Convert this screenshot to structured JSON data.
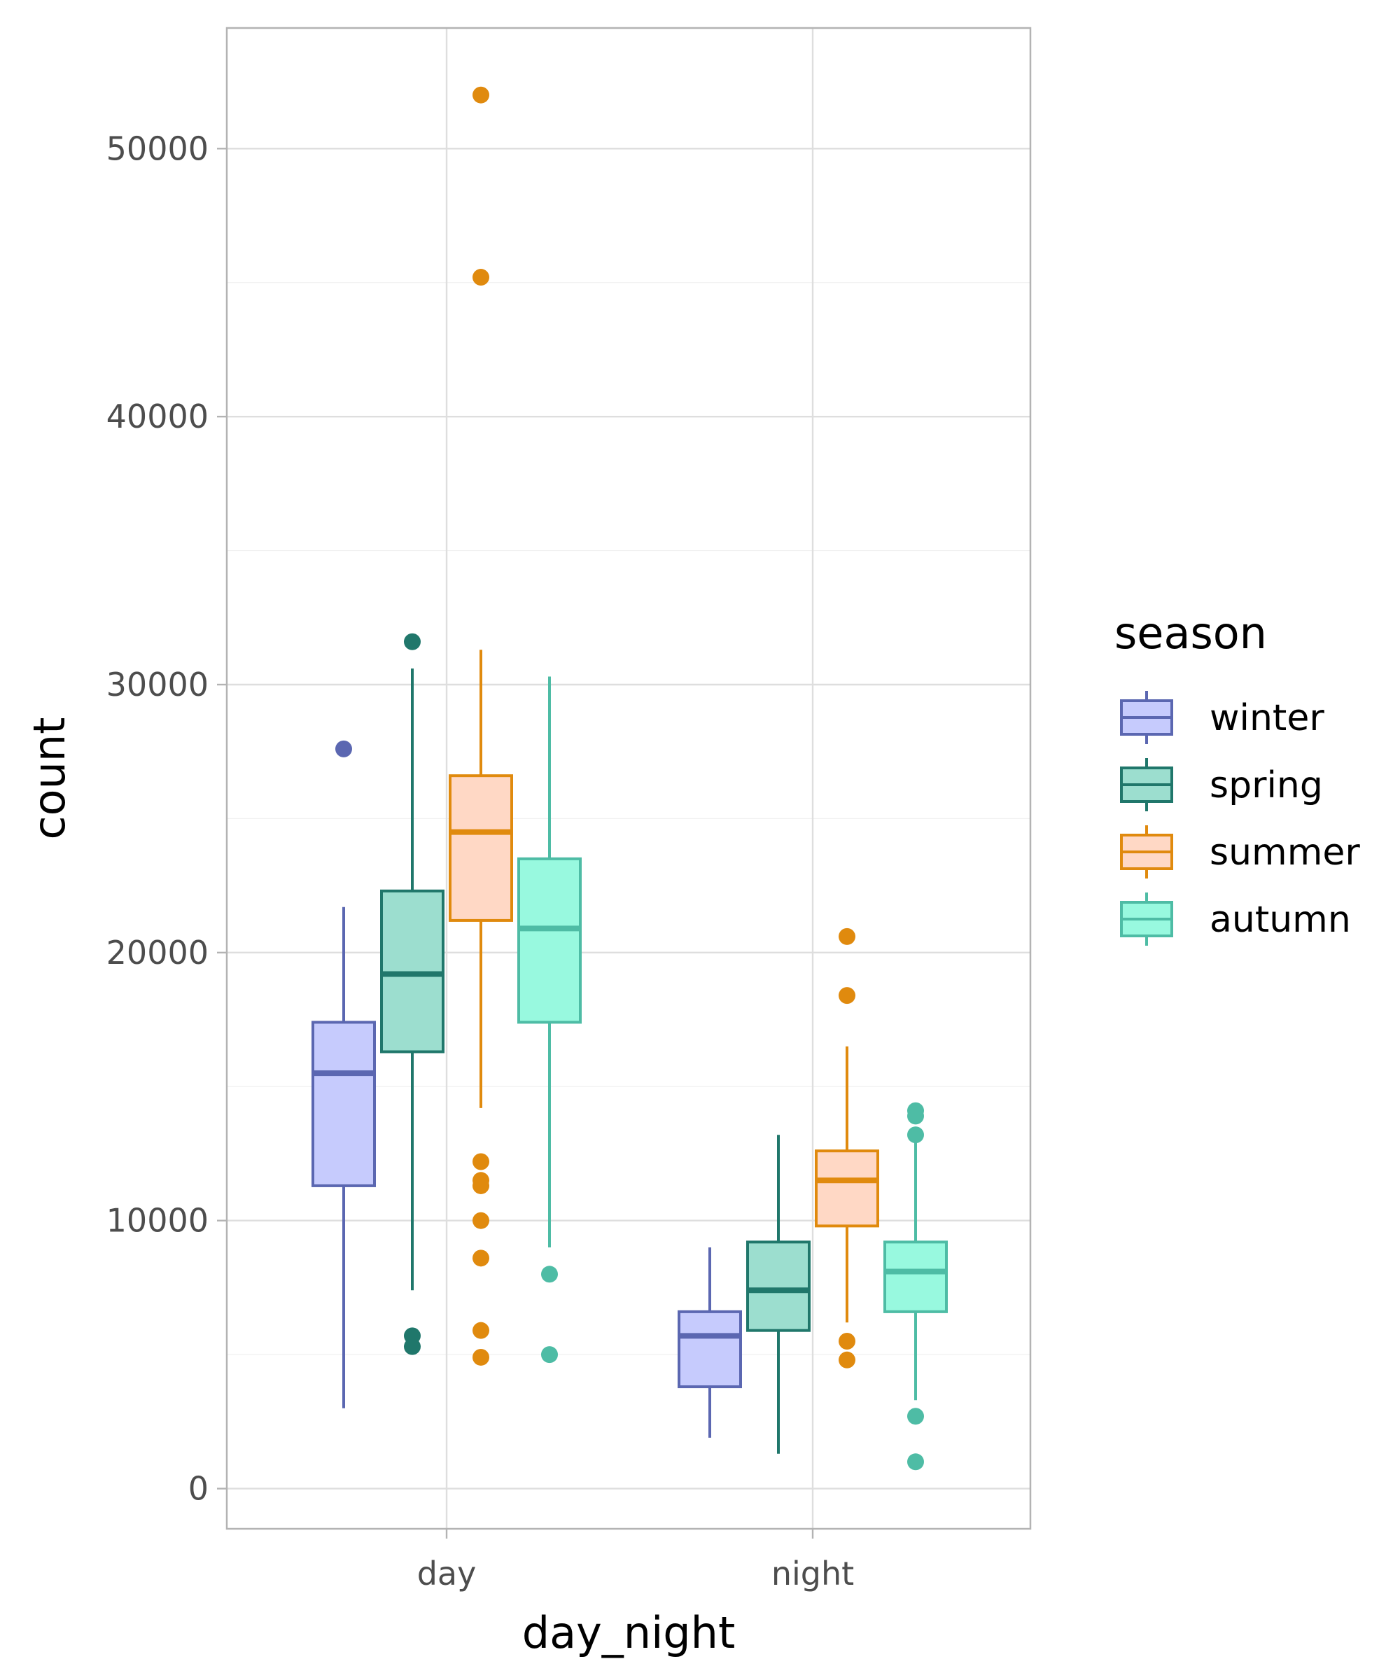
{
  "chart_data": {
    "type": "boxplot",
    "xlabel": "day_night",
    "ylabel": "count",
    "categories": [
      "day",
      "night"
    ],
    "ylim": [
      -1500,
      54500
    ],
    "yticks": [
      0,
      10000,
      20000,
      30000,
      40000,
      50000
    ],
    "yticks_labels": [
      "0",
      "10000",
      "20000",
      "30000",
      "40000",
      "50000"
    ],
    "grid": true,
    "legend": {
      "title": "season",
      "position": "right",
      "entries": [
        "winter",
        "spring",
        "summer",
        "autumn"
      ]
    },
    "series": [
      {
        "name": "winter",
        "stroke": "#5b67b1",
        "fill": "#c6cbfd",
        "boxes": [
          {
            "category": "day",
            "min": 3000,
            "q1": 11300,
            "median": 15500,
            "q3": 17400,
            "max": 21700,
            "outliers": [
              27600
            ]
          },
          {
            "category": "night",
            "min": 1900,
            "q1": 3800,
            "median": 5700,
            "q3": 6600,
            "max": 9000,
            "outliers": []
          }
        ]
      },
      {
        "name": "spring",
        "stroke": "#20776b",
        "fill": "#9cdecf",
        "boxes": [
          {
            "category": "day",
            "min": 7400,
            "q1": 16300,
            "median": 19200,
            "q3": 22300,
            "max": 30600,
            "outliers": [
              31600,
              5700,
              5300
            ]
          },
          {
            "category": "night",
            "min": 1300,
            "q1": 5900,
            "median": 7400,
            "q3": 9200,
            "max": 13200,
            "outliers": []
          }
        ]
      },
      {
        "name": "summer",
        "stroke": "#e08a0e",
        "fill": "#ffd8c5",
        "boxes": [
          {
            "category": "day",
            "min": 14200,
            "q1": 21200,
            "median": 24500,
            "q3": 26600,
            "max": 31300,
            "outliers": [
              52000,
              45200,
              12200,
              11500,
              11300,
              10000,
              8600,
              5900,
              4900
            ]
          },
          {
            "category": "night",
            "min": 6200,
            "q1": 9800,
            "median": 11500,
            "q3": 12600,
            "max": 16500,
            "outliers": [
              20600,
              18400,
              5500,
              4800
            ]
          }
        ]
      },
      {
        "name": "autumn",
        "stroke": "#4ebca5",
        "fill": "#98f9df",
        "boxes": [
          {
            "category": "day",
            "min": 9000,
            "q1": 17400,
            "median": 20900,
            "q3": 23500,
            "max": 30300,
            "outliers": [
              8000,
              5000
            ]
          },
          {
            "category": "night",
            "min": 3300,
            "q1": 6600,
            "median": 8100,
            "q3": 9200,
            "max": 13200,
            "outliers": [
              14100,
              13900,
              13200,
              2700,
              1000
            ]
          }
        ]
      }
    ]
  }
}
